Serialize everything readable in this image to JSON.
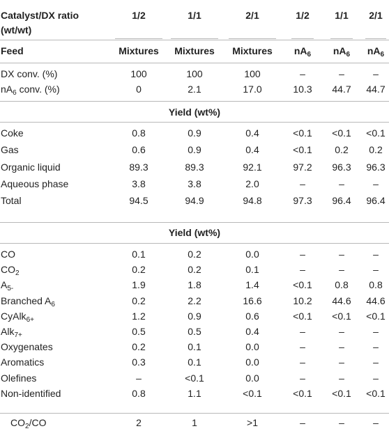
{
  "header": {
    "ratio_label_line1": "Catalyst/DX ratio",
    "ratio_label_line2": "(wt/wt)",
    "ratios": [
      "1/2",
      "1/1",
      "2/1",
      "1/2",
      "1/1",
      "2/1"
    ],
    "feed_label": "Feed",
    "feeds": [
      "Mixtures",
      "Mixtures",
      "Mixtures",
      "nA",
      "nA",
      "nA"
    ],
    "feed_subs": [
      "",
      "",
      "",
      "6",
      "6",
      "6"
    ]
  },
  "conversion_rows": [
    {
      "label": "DX conv. (%)",
      "values": [
        "100",
        "100",
        "100",
        "–",
        "–",
        "–"
      ]
    },
    {
      "label": "nA",
      "sub": "6",
      "suffix": " conv. (%)",
      "values": [
        "0",
        "2.1",
        "17.0",
        "10.3",
        "44.7",
        "44.7"
      ]
    }
  ],
  "section1_title": "Yield (wt%)",
  "yield_rows": [
    {
      "label": "Coke",
      "values": [
        "0.8",
        "0.9",
        "0.4",
        "<0.1",
        "<0.1",
        "<0.1"
      ]
    },
    {
      "label": "Gas",
      "values": [
        "0.6",
        "0.9",
        "0.4",
        "<0.1",
        "0.2",
        "0.2"
      ]
    },
    {
      "label": "Organic liquid",
      "values": [
        "89.3",
        "89.3",
        "92.1",
        "97.2",
        "96.3",
        "96.3"
      ]
    },
    {
      "label": "Aqueous phase",
      "values": [
        "3.8",
        "3.8",
        "2.0",
        "–",
        "–",
        "–"
      ]
    },
    {
      "label": "Total",
      "values": [
        "94.5",
        "94.9",
        "94.8",
        "97.3",
        "96.4",
        "96.4"
      ]
    }
  ],
  "section2_title": "Yield (wt%)",
  "product_rows": [
    {
      "label": "CO",
      "sub": "",
      "values": [
        "0.1",
        "0.2",
        "0.0",
        "–",
        "–",
        "–"
      ]
    },
    {
      "label": "CO",
      "sub": "2",
      "values": [
        "0.2",
        "0.2",
        "0.1",
        "–",
        "–",
        "–"
      ]
    },
    {
      "label": "A",
      "sub": "5-",
      "values": [
        "1.9",
        "1.8",
        "1.4",
        "<0.1",
        "0.8",
        "0.8"
      ]
    },
    {
      "label": "Branched A",
      "sub": "6",
      "values": [
        "0.2",
        "2.2",
        "16.6",
        "10.2",
        "44.6",
        "44.6"
      ]
    },
    {
      "label": "CyAlk",
      "sub": "6+",
      "values": [
        "1.2",
        "0.9",
        "0.6",
        "<0.1",
        "<0.1",
        "<0.1"
      ]
    },
    {
      "label": "Alk",
      "sub": "7+",
      "values": [
        "0.5",
        "0.5",
        "0.4",
        "–",
        "–",
        "–"
      ]
    },
    {
      "label": "Oxygenates",
      "sub": "",
      "values": [
        "0.2",
        "0.1",
        "0.0",
        "–",
        "–",
        "–"
      ]
    },
    {
      "label": "Aromatics",
      "sub": "",
      "values": [
        "0.3",
        "0.1",
        "0.0",
        "–",
        "–",
        "–"
      ]
    },
    {
      "label": "Olefines",
      "sub": "",
      "values": [
        "–",
        "<0.1",
        "0.0",
        "–",
        "–",
        "–"
      ]
    },
    {
      "label": "Non-identified",
      "sub": "",
      "values": [
        "0.8",
        "1.1",
        "<0.1",
        "<0.1",
        "<0.1",
        "<0.1"
      ]
    }
  ],
  "ratio_row": {
    "label": "CO",
    "sub": "2",
    "suffix": "/CO",
    "values": [
      "2",
      "1",
      ">1",
      "–",
      "–",
      "–"
    ]
  }
}
